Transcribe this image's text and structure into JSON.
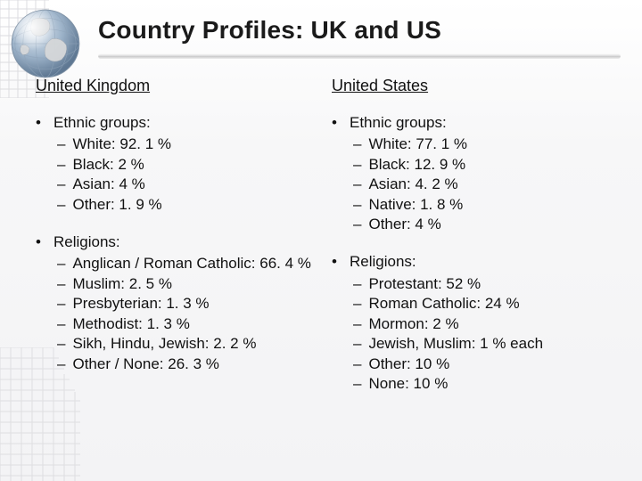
{
  "title": "Country Profiles: UK and US",
  "colors": {
    "text": "#111111",
    "title": "#1a1a1a",
    "background_top": "#ffffff",
    "background_bottom": "#f3f3f5",
    "grid_line": "#d9d9dd",
    "underline_shadow": "#c7c7cb"
  },
  "columns": [
    {
      "heading": "United Kingdom",
      "sections": [
        {
          "label": "Ethnic groups:",
          "items": [
            "White: 92. 1 %",
            "Black: 2 %",
            "Asian: 4 %",
            "Other: 1. 9 %"
          ]
        },
        {
          "label": "Religions:",
          "items": [
            "Anglican / Roman Catholic: 66. 4 %",
            "Muslim: 2. 5 %",
            "Presbyterian: 1. 3 %",
            "Methodist: 1. 3 %",
            "Sikh, Hindu, Jewish: 2. 2 %",
            "Other / None: 26. 3 %"
          ]
        }
      ]
    },
    {
      "heading": "United States",
      "sections": [
        {
          "label": "Ethnic groups:",
          "items": [
            "White: 77. 1 %",
            "Black: 12. 9 %",
            "Asian: 4. 2 %",
            "Native: 1. 8 %",
            "Other: 4 %"
          ]
        },
        {
          "label": "Religions:",
          "items": [
            "Protestant: 52 %",
            "Roman Catholic: 24 %",
            "Mormon: 2 %",
            "Jewish, Muslim: 1 % each",
            "Other: 10 %",
            "None: 10 %"
          ]
        }
      ]
    }
  ]
}
